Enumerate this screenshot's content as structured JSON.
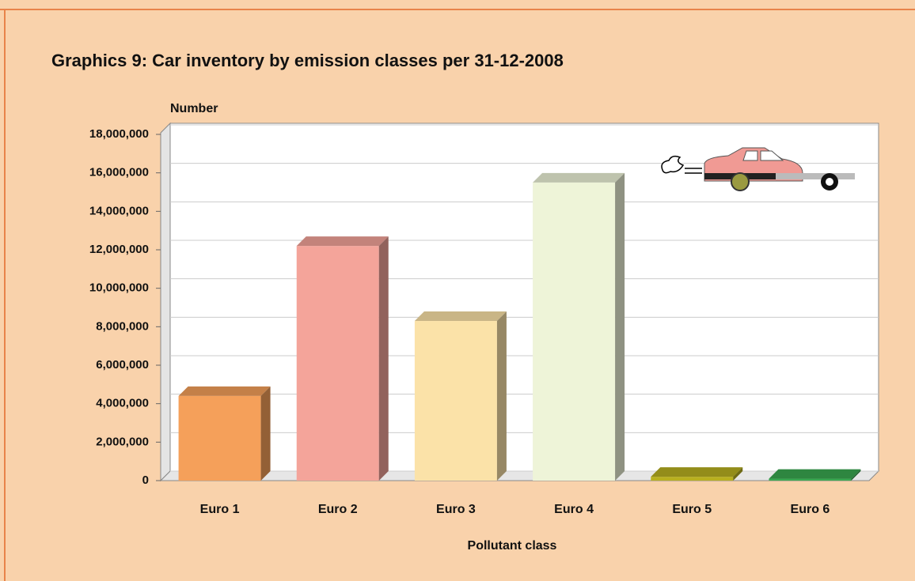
{
  "chart_data": {
    "type": "bar3d",
    "title": "Graphics 9:  Car inventory by emission classes per 31-12-2008",
    "y_axis_label": "Number",
    "x_axis_label": "Pollutant class",
    "categories": [
      "Euro 1",
      "Euro 2",
      "Euro 3",
      "Euro 4",
      "Euro 5",
      "Euro 6"
    ],
    "values": [
      4400000,
      12200000,
      8300000,
      15500000,
      200000,
      100000
    ],
    "colors": [
      "#f5a05a",
      "#f4a49a",
      "#fbe2a8",
      "#eef4d8",
      "#b8b020",
      "#3aa850"
    ],
    "ylim": [
      0,
      18000000
    ],
    "yticks": [
      0,
      {
        "value": 2000000,
        "label": "2,000,000"
      },
      {
        "value": 4000000,
        "label": "4,000,000"
      },
      {
        "value": 6000000,
        "label": "6,000,000"
      },
      {
        "value": 8000000,
        "label": "8,000,000"
      },
      {
        "value": 10000000,
        "label": "10,000,000"
      },
      {
        "value": 12000000,
        "label": "12,000,000"
      },
      {
        "value": 14000000,
        "label": "14,000,000"
      },
      {
        "value": 16000000,
        "label": "16,000,000"
      },
      {
        "value": 18000000,
        "label": "18,000,000"
      }
    ],
    "grid": true
  }
}
